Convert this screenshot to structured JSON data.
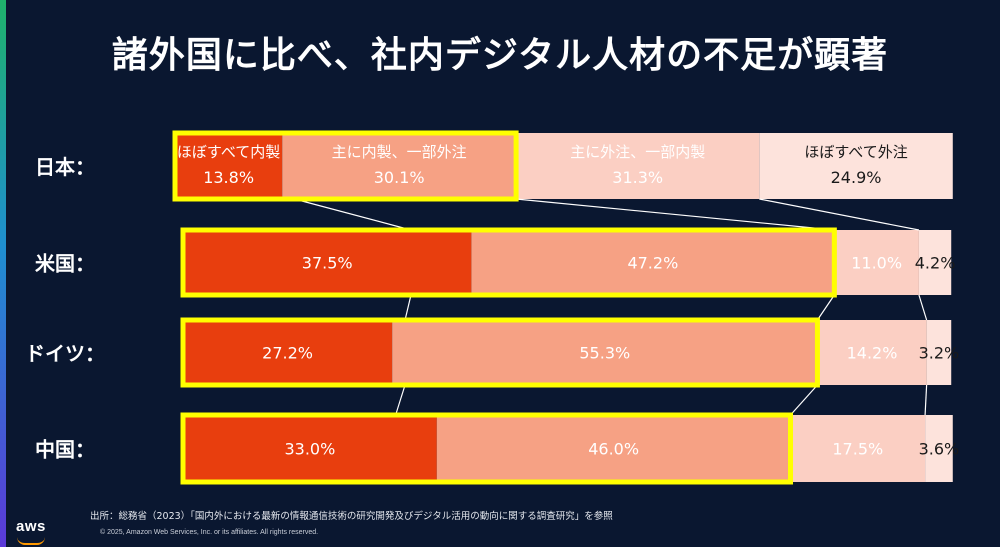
{
  "title": "諸外国に比べ、社内デジタル人材の不足が顕著",
  "chart_data": {
    "type": "bar",
    "orientation": "horizontal",
    "stacked": true,
    "percent": true,
    "categories": [
      "日本：",
      "米国：",
      "ドイツ：",
      "中国："
    ],
    "series": [
      {
        "name": "ほぼすべて内製",
        "values": [
          13.8,
          37.5,
          27.2,
          33.0
        ],
        "labels": [
          "13.8%",
          "37.5%",
          "27.2%",
          "33.0%"
        ],
        "color": "#e83e0e",
        "text_color": "#ffffff"
      },
      {
        "name": "主に内製、一部外注",
        "values": [
          30.1,
          47.2,
          55.3,
          46.0
        ],
        "labels": [
          "30.1%",
          "47.2%",
          "55.3%",
          "46.0%"
        ],
        "color": "#f6a184",
        "text_color": "#ffffff"
      },
      {
        "name": "主に外注、一部内製",
        "values": [
          31.3,
          11.0,
          14.2,
          17.5
        ],
        "labels": [
          "31.3%",
          "11.0%",
          "14.2%",
          "17.5%"
        ],
        "color": "#fbcfc3",
        "text_color": "#ffffff"
      },
      {
        "name": "ほぼすべて外注",
        "values": [
          24.9,
          4.2,
          3.2,
          3.6
        ],
        "labels": [
          "24.9%",
          "4.2%",
          "3.2%",
          "3.6%"
        ],
        "color": "#fde3dc",
        "text_color": "#1a1a1a"
      }
    ],
    "highlight": "ほぼすべて内製 + 主に内製、一部外注",
    "highlight_color": "#ffff00"
  },
  "source": "出所：総務省（2023）「国内外における最新の情報通信技術の研究開発及びデジタル活用の動向に関する調査研究」を参照",
  "footer": {
    "logo": "aws",
    "copyright": "© 2025, Amazon Web Services, Inc. or its affiliates. All rights reserved."
  }
}
